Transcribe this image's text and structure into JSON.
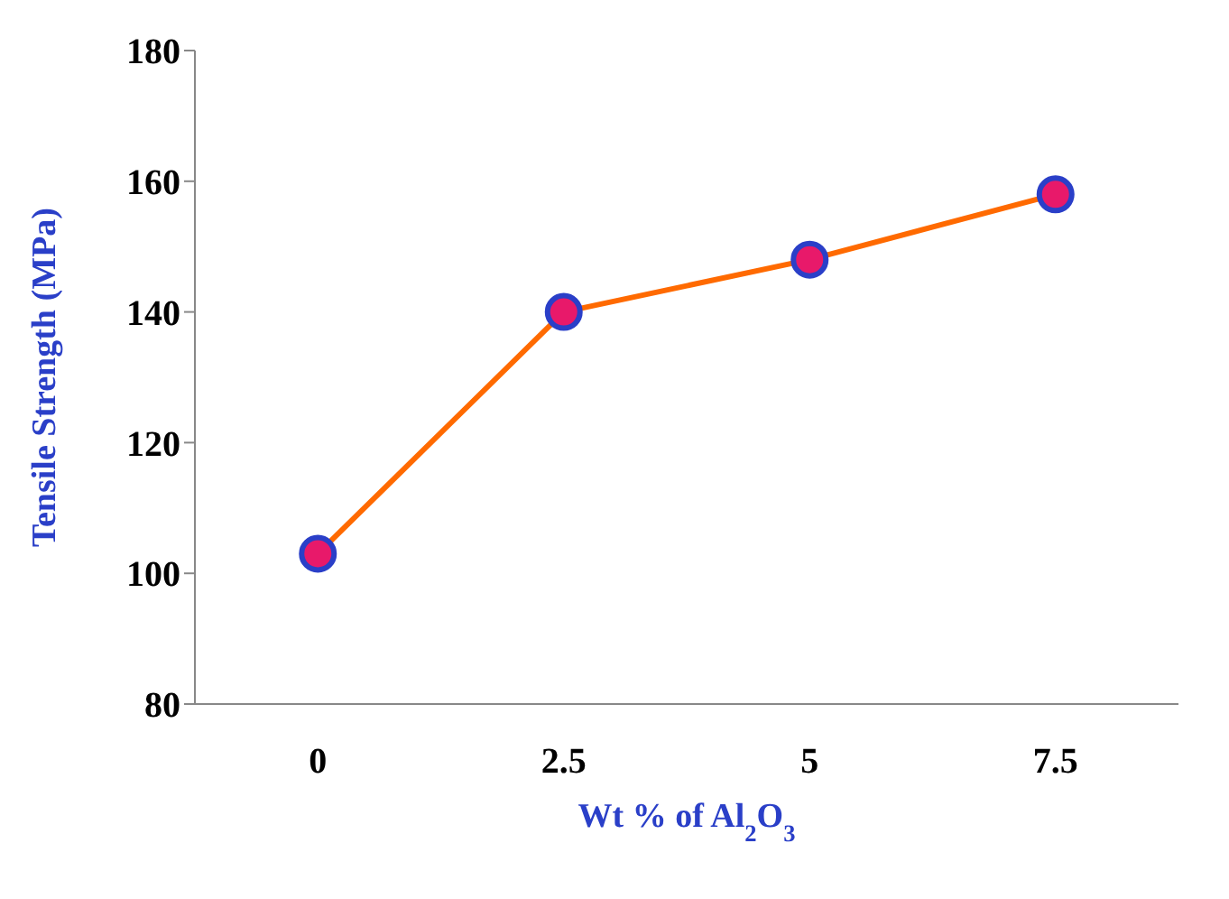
{
  "chart_data": {
    "type": "line",
    "xlabel": "Wt % of Al$_{2}$O$_{3}$",
    "ylabel": "Tensile Strength (MPa)",
    "categories": [
      "0",
      "2.5",
      "5",
      "7.5"
    ],
    "series": [
      {
        "color": "#ff6a00",
        "values": [
          103,
          140,
          148,
          158
        ]
      }
    ],
    "ylim": [
      80,
      180
    ],
    "yticks": [
      80,
      100,
      120,
      140,
      160,
      180
    ],
    "grid": false,
    "legend": false,
    "marker": "circle",
    "line_style": "solid"
  }
}
